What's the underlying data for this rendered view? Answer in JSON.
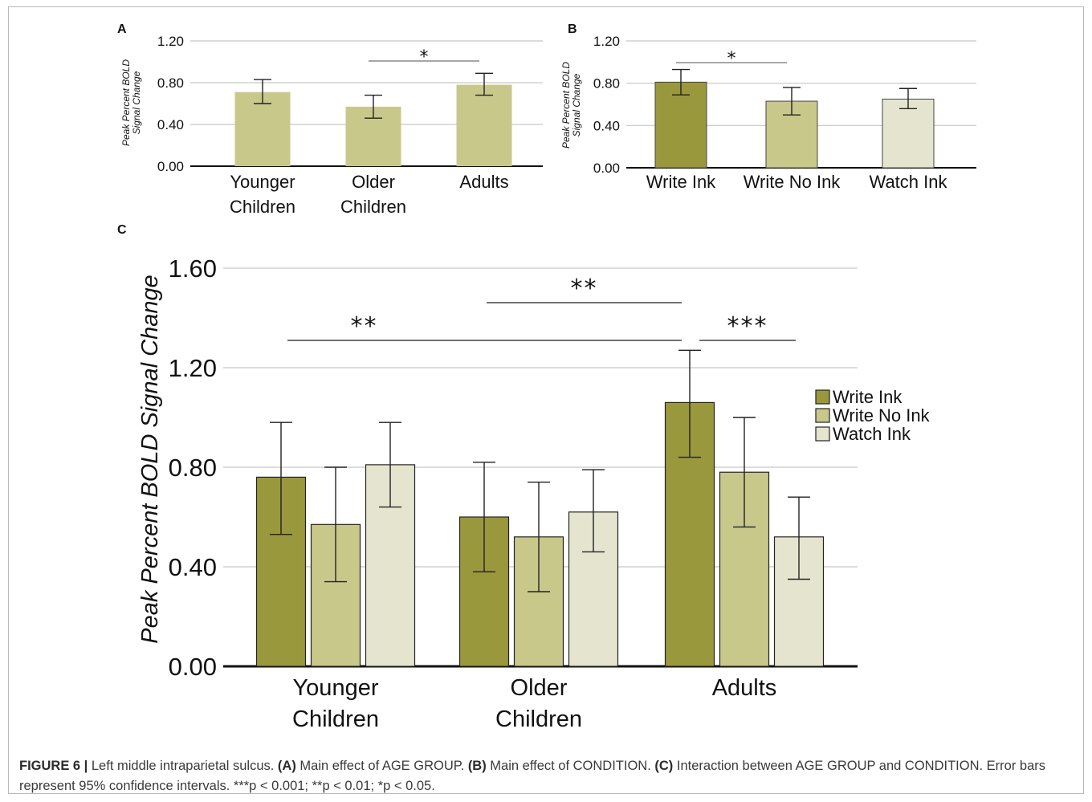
{
  "chart_data": [
    {
      "panel": "A",
      "type": "bar",
      "ylabel": "Peak Percent BOLD Signal Change",
      "ylim": [
        0,
        1.2
      ],
      "yticks": [
        "0.00",
        "0.40",
        "0.80",
        "1.20"
      ],
      "categories": [
        "Younger\nChildren",
        "Older\nChildren",
        "Adults"
      ],
      "series": [
        {
          "values": [
            0.71,
            0.57,
            0.78
          ],
          "ci_low": [
            0.6,
            0.46,
            0.68
          ],
          "ci_high": [
            0.83,
            0.68,
            0.89
          ]
        }
      ],
      "colors": [
        "#c9c88b"
      ],
      "grid": true,
      "significance": [
        {
          "from": 1,
          "to": 2,
          "label": "*"
        }
      ]
    },
    {
      "panel": "B",
      "type": "bar",
      "ylabel": "Peak Percent BOLD Signal Change",
      "ylim": [
        0,
        1.2
      ],
      "yticks": [
        "0.00",
        "0.40",
        "0.80",
        "1.20"
      ],
      "categories": [
        "Write Ink",
        "Write No Ink",
        "Watch Ink"
      ],
      "series": [
        {
          "values": [
            0.81,
            0.63,
            0.65
          ],
          "ci_low": [
            0.69,
            0.5,
            0.56
          ],
          "ci_high": [
            0.93,
            0.76,
            0.75
          ]
        }
      ],
      "colors": [
        "#9a983c",
        "#c9c88b",
        "#e5e5cf"
      ],
      "grid": true,
      "significance": [
        {
          "from": 0,
          "to": 1,
          "label": "*"
        }
      ]
    },
    {
      "panel": "C",
      "type": "bar",
      "ylabel": "Peak Percent BOLD Signal Change",
      "ylim": [
        0,
        1.6
      ],
      "yticks": [
        "0.00",
        "0.40",
        "0.80",
        "1.20",
        "1.60"
      ],
      "categories": [
        "Younger\nChildren",
        "Older\nChildren",
        "Adults"
      ],
      "series": [
        {
          "name": "Write Ink",
          "color": "#9a983c",
          "values": [
            0.76,
            0.6,
            1.06
          ],
          "ci_low": [
            0.53,
            0.38,
            0.84
          ],
          "ci_high": [
            0.98,
            0.82,
            1.27
          ]
        },
        {
          "name": "Write No Ink",
          "color": "#c9c88b",
          "values": [
            0.57,
            0.52,
            0.78
          ],
          "ci_low": [
            0.34,
            0.3,
            0.56
          ],
          "ci_high": [
            0.8,
            0.74,
            1.0
          ]
        },
        {
          "name": "Watch Ink",
          "color": "#e5e5cf",
          "values": [
            0.81,
            0.62,
            0.52
          ],
          "ci_low": [
            0.64,
            0.46,
            0.35
          ],
          "ci_high": [
            0.98,
            0.79,
            0.68
          ]
        }
      ],
      "grid": true,
      "legend": "right",
      "significance": [
        {
          "group_from": 0,
          "group_to": 2,
          "series_from": 0,
          "series_to": 0,
          "label": "**",
          "level": 1
        },
        {
          "group_from": 1,
          "group_to": 2,
          "series_from": 0,
          "series_to": 0,
          "label": "**",
          "level": 2
        },
        {
          "group_from": 2,
          "group_to": 2,
          "series_from": 0,
          "series_to": 2,
          "label": "***",
          "level": 1
        }
      ]
    }
  ],
  "caption": {
    "figure_label": "FIGURE 6 |",
    "text1": " Left middle intraparietal sulcus. ",
    "a_label": "(A)",
    "a_text": " Main effect of AGE GROUP. ",
    "b_label": "(B)",
    "b_text": " Main effect of CONDITION. ",
    "c_label": "(C)",
    "c_text": " Interaction between AGE GROUP and CONDITION. Error bars represent 95% confidence intervals. ***p < 0.001; **p < 0.01; *p < 0.05."
  }
}
